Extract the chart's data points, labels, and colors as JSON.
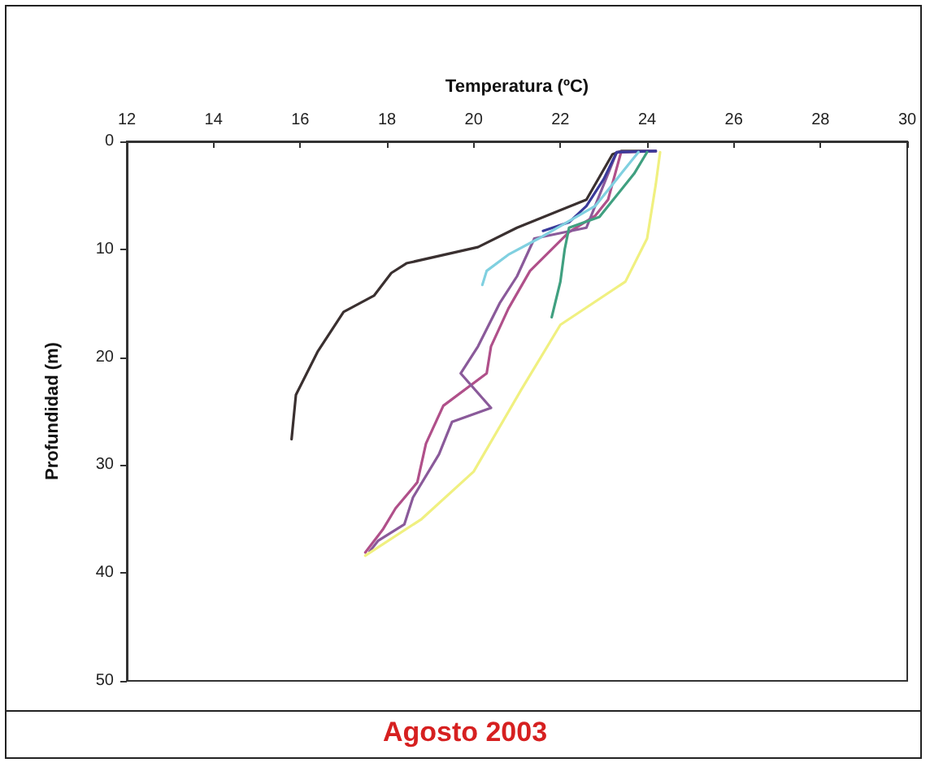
{
  "chart_data": {
    "type": "line",
    "title": "Agosto 2003",
    "xlabel": "Temperatura (ºC)",
    "ylabel": "Profundidad (m)",
    "xlim": [
      12,
      30
    ],
    "xticks": [
      12,
      14,
      16,
      18,
      20,
      22,
      24,
      26,
      28,
      30
    ],
    "ylim": [
      50,
      0
    ],
    "yticks": [
      0,
      10,
      20,
      30,
      40,
      50
    ],
    "grid": false,
    "marker": "none",
    "line_style": "solid",
    "series": [
      {
        "color": "#3a3030",
        "x": [
          24.2,
          23.4,
          23.2,
          22.6,
          21.0,
          20.1,
          18.45,
          18.1,
          17.7,
          17.0,
          16.4,
          15.9,
          15.8
        ],
        "values": [
          0.9,
          0.9,
          1.2,
          5.4,
          8.0,
          9.8,
          11.3,
          12.2,
          14.3,
          15.8,
          19.5,
          23.5,
          27.6
        ]
      },
      {
        "color": "#b0508a",
        "x": [
          24.2,
          23.4,
          23.1,
          22.8,
          22.2,
          21.3,
          20.8,
          20.4,
          20.3,
          19.3,
          18.9,
          18.7,
          18.2,
          17.9,
          17.5
        ],
        "values": [
          0.9,
          1.0,
          5.4,
          6.9,
          8.4,
          12.0,
          15.5,
          19.0,
          21.5,
          24.5,
          28.0,
          31.6,
          34.0,
          36.0,
          38.1
        ]
      },
      {
        "color": "#8a5a9a",
        "x": [
          24.2,
          23.3,
          22.9,
          22.6,
          21.4,
          21.0,
          20.6,
          20.1,
          19.7,
          20.4,
          19.5,
          19.2,
          18.6,
          18.4,
          17.8,
          17.6
        ],
        "values": [
          0.9,
          1.0,
          5.0,
          8.0,
          9.0,
          12.5,
          15.0,
          19.0,
          21.5,
          24.7,
          26.0,
          29.0,
          33.0,
          35.5,
          37.0,
          38.0
        ]
      },
      {
        "color": "#3a3a9a",
        "x": [
          24.2,
          23.3,
          23.0,
          22.6,
          22.2,
          21.6
        ],
        "values": [
          0.9,
          1.0,
          3.5,
          6.0,
          7.5,
          8.3
        ]
      },
      {
        "color": "#80d0e0",
        "x": [
          23.8,
          23.4,
          22.8,
          21.5,
          20.8,
          20.3,
          20.2
        ],
        "values": [
          1.0,
          3.0,
          6.0,
          9.0,
          10.5,
          12.0,
          13.3
        ]
      },
      {
        "color": "#40a080",
        "x": [
          24.0,
          23.7,
          22.9,
          22.2,
          22.1,
          22.0,
          21.8
        ],
        "values": [
          1.0,
          3.0,
          7.0,
          8.0,
          10.0,
          13.0,
          16.3
        ]
      },
      {
        "color": "#f0f080",
        "x": [
          24.3,
          24.2,
          24.0,
          23.5,
          22.0,
          21.1,
          20.0,
          18.8,
          17.5
        ],
        "values": [
          1.0,
          4.0,
          9.0,
          13.0,
          17.0,
          23.0,
          30.6,
          35.0,
          38.4
        ]
      }
    ]
  }
}
